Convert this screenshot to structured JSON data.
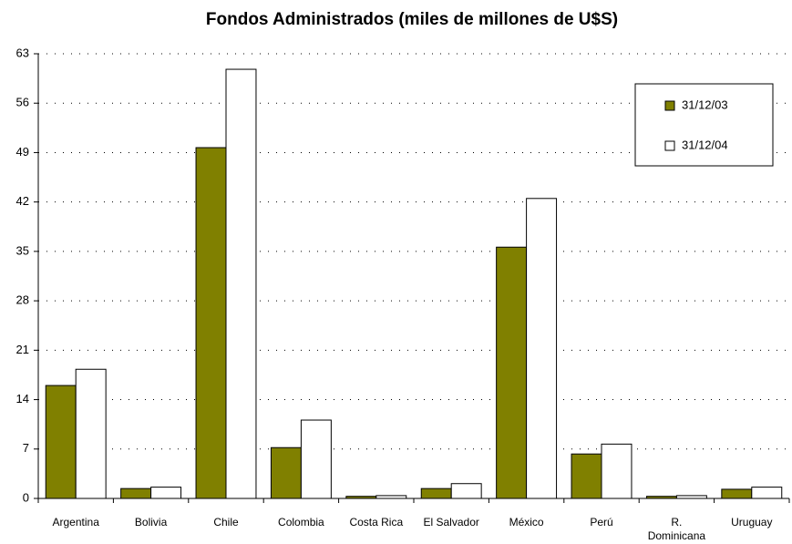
{
  "chart_data": {
    "type": "bar",
    "title": "Fondos Administrados (miles de millones de U$S)",
    "categories": [
      "Argentina",
      "Bolivia",
      "Chile",
      "Colombia",
      "Costa Rica",
      "El Salvador",
      "México",
      "Perú",
      "R. Dominicana",
      "Uruguay"
    ],
    "series": [
      {
        "name": "31/12/03",
        "color": "#808000",
        "values": [
          16.0,
          1.4,
          49.7,
          7.2,
          0.3,
          1.4,
          35.6,
          6.3,
          0.3,
          1.3
        ]
      },
      {
        "name": "31/12/04",
        "color": "#ffffff",
        "values": [
          18.3,
          1.6,
          60.8,
          11.1,
          0.4,
          2.1,
          42.5,
          7.7,
          0.4,
          1.6
        ]
      }
    ],
    "ylim": [
      0,
      63
    ],
    "yticks": [
      0,
      7,
      14,
      21,
      28,
      35,
      42,
      49,
      56,
      63
    ],
    "grid": true,
    "legend": "upper right"
  }
}
